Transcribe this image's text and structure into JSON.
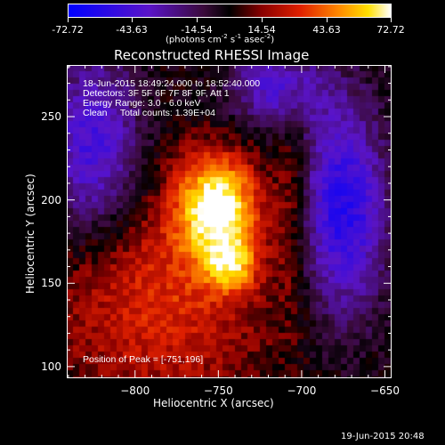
{
  "colorbar": {
    "ticks": [
      "-72.72",
      "-43.63",
      "-14.54",
      "14.54",
      "43.63",
      "72.72"
    ],
    "units_prefix": "(photons cm",
    "units_sup1": "-2",
    "units_mid": " s",
    "units_sup2": "-1",
    "units_mid2": " asec",
    "units_sup3": "-2",
    "units_suffix": ")",
    "min": -72.72,
    "max": 72.72
  },
  "chart_data": {
    "type": "heatmap",
    "title": "Reconstructed RHESSI Image",
    "xlabel": "Heliocentric X (arcsec)",
    "ylabel": "Heliocentric Y (arcsec)",
    "xlim": [
      -841,
      -646
    ],
    "ylim": [
      93,
      281
    ],
    "xticks": [
      -800,
      -750,
      -700,
      -650
    ],
    "xtick_labels": [
      "−800",
      "−750",
      "−700",
      "−650"
    ],
    "yticks": [
      100,
      150,
      200,
      250
    ],
    "ytick_labels": [
      "100",
      "150",
      "200",
      "250"
    ],
    "peak": [
      -751,
      196
    ],
    "peak_value": 72.72,
    "sources": [
      {
        "x": -751,
        "y": 196,
        "sigma_x": 17,
        "sigma_y": 22,
        "amp": 72.72
      },
      {
        "x": -742,
        "y": 160,
        "sigma_x": 11,
        "sigma_y": 11,
        "amp": 38
      },
      {
        "x": -786,
        "y": 140,
        "sigma_x": 45,
        "sigma_y": 45,
        "amp": 32
      },
      {
        "x": -706,
        "y": 205,
        "sigma_x": 7,
        "sigma_y": 50,
        "amp": 18
      },
      {
        "x": -825,
        "y": 232,
        "sigma_x": 20,
        "sigma_y": 40,
        "amp": -48
      },
      {
        "x": -675,
        "y": 195,
        "sigma_x": 18,
        "sigma_y": 45,
        "amp": -58
      },
      {
        "x": -715,
        "y": 268,
        "sigma_x": 20,
        "sigma_y": 18,
        "amp": -42
      }
    ]
  },
  "info": {
    "line1": "18-Jun-2015 18:49:24.000 to 18:52:40.000",
    "line2": "Detectors: 3F 5F 6F 7F 8F 9F, Att 1",
    "line3": "Energy Range: 3.0 - 6.0 keV",
    "line4": "Clean     Total counts: 1.39E+04",
    "peak_text": "Position of Peak = [-751,196]"
  },
  "footer": {
    "timestamp": "19-Jun-2015 20:48"
  }
}
